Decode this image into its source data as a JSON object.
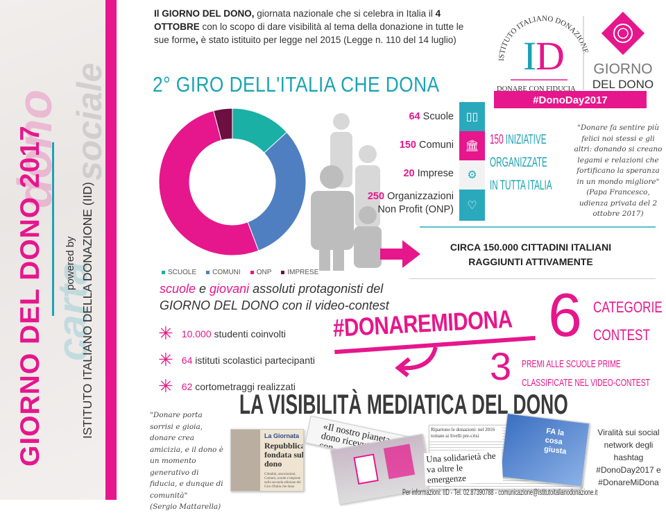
{
  "sidebar": {
    "title": "GIORNO DEL DONO 2017",
    "powered_by": "powered by",
    "organization": "ISTITUTO ITALIANO DELLA DONAZIONE (IID)"
  },
  "intro": {
    "p1_bold": "Il GIORNO DEL DONO,",
    "p1": " giornata nazionale che si celebra in Italia il ",
    "p2_bold": "4 OTTOBRE",
    "p2": " con lo scopo di dare visibilità al tema della donazione in tutte le sue forme",
    "p3_bold": ",",
    "p3": " è stato istituito per legge nel 2015 (Legge n. 110 del 14 luglio)"
  },
  "logo": {
    "iid_arc": "ISTITUTO ITALIANO DONAZIONE",
    "iid_letters": "ID",
    "iid_tagline": "DONARE CON FIDUCIA",
    "gdd_line1": "GIORNO",
    "gdd_line2": "DEL DONO",
    "hashtag": "#DonoDay2017"
  },
  "title": "2° GIRO DELL'ITALIA CHE DONA",
  "chart_data": {
    "type": "pie",
    "subtype": "donut",
    "categories": [
      "SCUOLE",
      "COMUNI",
      "ONP",
      "IMPRESE"
    ],
    "values": [
      64,
      150,
      250,
      20
    ],
    "colors": [
      "#1ab0a6",
      "#4f7fc1",
      "#e6168c",
      "#6b1040"
    ],
    "legend": "bottom",
    "start": "top",
    "direction": "clockwise"
  },
  "stats": [
    {
      "value": "64",
      "label": "Scuole",
      "tile": "SCUOLE",
      "icon": "book-icon",
      "color": "#2aa9bd"
    },
    {
      "value": "150",
      "label": "Comuni",
      "tile": "COMUNI",
      "icon": "building-icon",
      "color": "#e6168c"
    },
    {
      "value": "20",
      "label": "Imprese",
      "tile": "IMPRESE",
      "icon": "gears-icon",
      "color": "#f2f2f2"
    },
    {
      "value": "250",
      "label": "Organizzazioni",
      "label2": "Non Profit (ONP)",
      "tile": "NON PROFIT",
      "icon": "heart-icon",
      "color": "#2aa9bd"
    }
  ],
  "iniziative": {
    "number": "150",
    "line1": " INIZIATIVE",
    "line2": "ORGANIZZATE",
    "line3": "IN TUTTA ITALIA"
  },
  "quote_pope": {
    "text": "\"Donare fa sentire più felici noi stessi e gli altri: donando si creano legami e relazioni che fortificano la speranza in un mondo migliore\"",
    "author": "(Papa Francesco, udienza privata del 2 ottobre 2017)"
  },
  "reach": {
    "line1": "CIRCA 150.000 CITTADINI ITALIANI",
    "line2": "RAGGIUNTI ATTIVAMENTE"
  },
  "schools": {
    "w1": "scuole",
    "w2": " e ",
    "w3": "giovani",
    "w4": " assoluti protagonisti del",
    "line2": "GIORNO DEL DONO con il video-contest"
  },
  "contest_items": [
    {
      "value": "10.000",
      "label": " studenti coinvolti"
    },
    {
      "value": "64",
      "label": " istituti scolastici partecipanti"
    },
    {
      "value": "62",
      "label": " cortometraggi realizzati"
    }
  ],
  "hashtag": "#DONAREMIDONA",
  "categories": {
    "number": "6",
    "line1": "CATEGORIE",
    "line2": "CONTEST"
  },
  "prizes": {
    "number": "3",
    "line1": "PREMI ALLE SCUOLE PRIME",
    "line2": "CLASSIFICATE NEL VIDEO-CONTEST"
  },
  "media_title": "LA VISIBILITÀ MEDIATICA DEL DONO",
  "quote_president": {
    "text": "\"Donare porta sorrisi e gioia, donare crea amicizia, e il dono è un momento generativo di fiducia, e dunque di comunità\"",
    "author": "(Sergio Mattarella)"
  },
  "clippings": {
    "c1_kicker": "La Giornata",
    "c1_headline": "Repubblica fondata sul dono",
    "c1_body": "Cittadini, associazioni, Comuni, scuole e imprese nella seconda edizione del Giro d'Italia che dona",
    "c2_headline": "«Il nostro pianeta dono ricevuto da con",
    "c3_top": "Ripartono le donazioni: nel 2016 tornate ai livelli pre-crisi",
    "c3_headline": "Una solidarietà che va oltre le emergenze",
    "c4_text": "FA la cosa giusta"
  },
  "virality": {
    "text": "Viralità sui social network degli hashtag",
    "tag1": "#DonoDay2017 e",
    "tag2": "#DonareMiDona"
  },
  "footer": "Per informazioni: IID - Tel. 02.87390788 - comunicazione@istitutoitalianodonazione.it"
}
